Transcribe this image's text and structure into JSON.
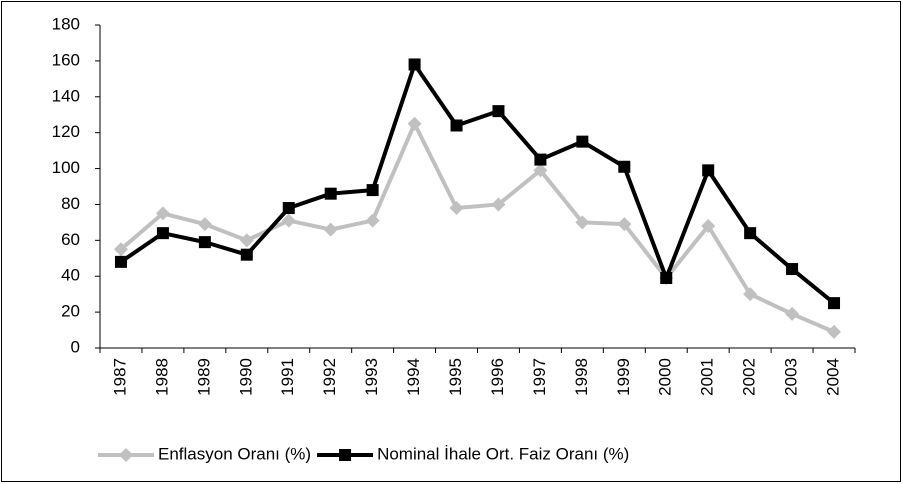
{
  "chart_data": {
    "type": "line",
    "categories": [
      "1987",
      "1988",
      "1989",
      "1990",
      "1991",
      "1992",
      "1993",
      "1994",
      "1995",
      "1996",
      "1997",
      "1998",
      "1999",
      "2000",
      "2001",
      "2002",
      "2003",
      "2004"
    ],
    "series": [
      {
        "name": "Enflasyon Oranı (%)",
        "color": "#c0c0c0",
        "marker": "diamond",
        "values": [
          55,
          75,
          69,
          60,
          71,
          66,
          71,
          125,
          78,
          80,
          99,
          70,
          69,
          39,
          68,
          30,
          19,
          9
        ]
      },
      {
        "name": "Nominal İhale Ort. Faiz Oranı (%)",
        "color": "#000000",
        "marker": "square",
        "values": [
          48,
          64,
          59,
          52,
          78,
          86,
          88,
          158,
          124,
          132,
          105,
          115,
          101,
          39,
          99,
          64,
          44,
          25
        ]
      }
    ],
    "ylim": [
      0,
      180
    ],
    "yticks": [
      0,
      20,
      40,
      60,
      80,
      100,
      120,
      140,
      160,
      180
    ],
    "grid": false,
    "legend": "bottom"
  }
}
